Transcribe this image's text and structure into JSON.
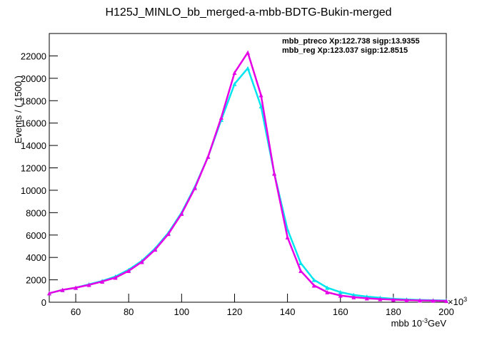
{
  "chart_data": {
    "type": "line",
    "title": "H125J_MINLO_bb_merged-a-mbb-BDTG-Bukin-merged",
    "x_label": "mbb 10",
    "x_label_sup": "-3",
    "x_label_unit": "GeV",
    "x_multiplier": "×10",
    "x_multiplier_sup": "3",
    "y_label": "Events / ( 1500 )",
    "x": [
      50,
      55,
      60,
      65,
      70,
      75,
      80,
      85,
      90,
      95,
      100,
      105,
      110,
      115,
      120,
      125,
      130,
      135,
      140,
      145,
      150,
      155,
      160,
      165,
      170,
      175,
      180,
      185,
      190,
      195,
      200
    ],
    "series": [
      {
        "name": "mbb_ptreco Xp:122.738 sigp:13.9355",
        "color": "#00e5ee",
        "values": [
          800,
          1100,
          1300,
          1600,
          1900,
          2300,
          2900,
          3700,
          4800,
          6200,
          8000,
          10300,
          13000,
          16300,
          19500,
          20900,
          17500,
          11500,
          6500,
          3500,
          2000,
          1300,
          900,
          650,
          500,
          400,
          300,
          250,
          200,
          170,
          150
        ]
      },
      {
        "name": "mbb_reg Xp:123.037 sigp:12.8515",
        "color": "#e600e6",
        "values": [
          800,
          1100,
          1300,
          1550,
          1850,
          2200,
          2800,
          3600,
          4700,
          6100,
          7900,
          10200,
          13000,
          16500,
          20500,
          22300,
          18500,
          11500,
          5800,
          2800,
          1500,
          900,
          600,
          450,
          350,
          280,
          230,
          190,
          160,
          140,
          120
        ]
      }
    ],
    "xlim": [
      50,
      200
    ],
    "xticks": [
      60,
      80,
      100,
      120,
      140,
      160,
      180,
      200
    ],
    "ylim": [
      0,
      24000
    ],
    "yticks": [
      0,
      2000,
      4000,
      6000,
      8000,
      10000,
      12000,
      14000,
      16000,
      18000,
      20000,
      22000
    ]
  }
}
